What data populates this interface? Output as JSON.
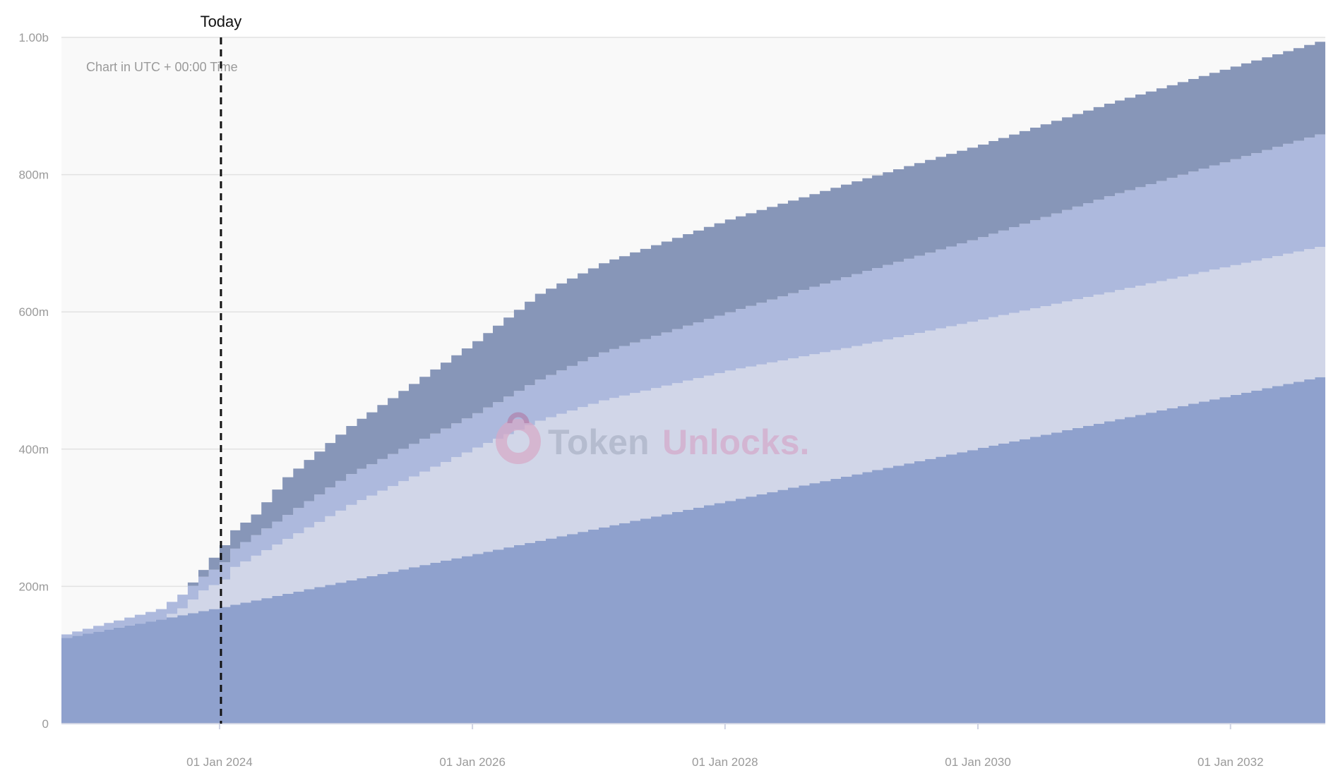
{
  "chart_data": {
    "type": "area",
    "step": true,
    "stacked": true,
    "note": "Chart in UTC + 00:00 Time",
    "watermark": {
      "part1": "Token",
      "part2": "Unlocks."
    },
    "today_marker": {
      "label": "Today",
      "date": "2024-01-01"
    },
    "x_ticks": [
      {
        "date": "2024-01-01",
        "label": "01 Jan 2024"
      },
      {
        "date": "2026-01-01",
        "label": "01 Jan 2026"
      },
      {
        "date": "2028-01-01",
        "label": "01 Jan 2028"
      },
      {
        "date": "2030-01-01",
        "label": "01 Jan 2030"
      },
      {
        "date": "2032-01-01",
        "label": "01 Jan 2032"
      }
    ],
    "y_ticks": [
      {
        "value": 0,
        "label": "0"
      },
      {
        "value": 200000000,
        "label": "200m"
      },
      {
        "value": 400000000,
        "label": "400m"
      },
      {
        "value": 600000000,
        "label": "600m"
      },
      {
        "value": 800000000,
        "label": "800m"
      },
      {
        "value": 1000000000,
        "label": "1.00b"
      }
    ],
    "xlim": [
      "2022-10-01",
      "2032-10-01"
    ],
    "ylim": [
      0,
      1000000000
    ],
    "grid": true,
    "colors": {
      "background": "#f9f9f9",
      "grid": "#e2e2e2",
      "series": [
        "#8fa1cd",
        "#d1d6e8",
        "#adb9dd",
        "#8796b8"
      ],
      "today_line": "#111111"
    },
    "series": [
      {
        "points": [
          [
            "2022-10-01",
            125
          ],
          [
            "2024-01-01",
            170
          ],
          [
            "2032-10-01",
            508
          ]
        ]
      },
      {
        "points": [
          [
            "2022-10-01",
            0
          ],
          [
            "2023-07-01",
            0
          ],
          [
            "2023-09-01",
            10
          ],
          [
            "2023-11-01",
            30
          ],
          [
            "2024-01-01",
            40
          ],
          [
            "2024-02-01",
            55
          ],
          [
            "2024-03-01",
            60
          ],
          [
            "2024-06-01",
            75
          ],
          [
            "2025-01-01",
            110
          ],
          [
            "2026-01-01",
            155
          ],
          [
            "2026-07-01",
            175
          ],
          [
            "2027-01-01",
            185
          ],
          [
            "2028-01-01",
            190
          ],
          [
            "2029-01-01",
            187
          ],
          [
            "2030-01-01",
            187
          ],
          [
            "2031-01-01",
            188
          ],
          [
            "2032-10-01",
            190
          ]
        ]
      },
      {
        "points": [
          [
            "2022-10-01",
            5
          ],
          [
            "2023-07-01",
            15
          ],
          [
            "2023-09-01",
            20
          ],
          [
            "2023-11-01",
            20
          ],
          [
            "2024-01-01",
            25
          ],
          [
            "2024-04-01",
            30
          ],
          [
            "2025-01-01",
            45
          ],
          [
            "2026-01-01",
            50
          ],
          [
            "2027-01-01",
            70
          ],
          [
            "2028-01-01",
            85
          ],
          [
            "2029-01-01",
            105
          ],
          [
            "2030-01-01",
            120
          ],
          [
            "2031-01-01",
            140
          ],
          [
            "2032-10-01",
            165
          ]
        ]
      },
      {
        "points": [
          [
            "2022-10-01",
            0
          ],
          [
            "2023-09-01",
            0
          ],
          [
            "2023-11-01",
            10
          ],
          [
            "2024-01-01",
            25
          ],
          [
            "2024-04-01",
            30
          ],
          [
            "2024-07-01",
            55
          ],
          [
            "2025-01-01",
            70
          ],
          [
            "2026-01-01",
            105
          ],
          [
            "2026-07-01",
            125
          ],
          [
            "2027-01-01",
            130
          ],
          [
            "2028-01-01",
            135
          ],
          [
            "2029-01-01",
            135
          ],
          [
            "2030-01-01",
            135
          ],
          [
            "2031-01-01",
            135
          ],
          [
            "2032-10-01",
            135
          ]
        ]
      }
    ],
    "series_units": "millions"
  }
}
